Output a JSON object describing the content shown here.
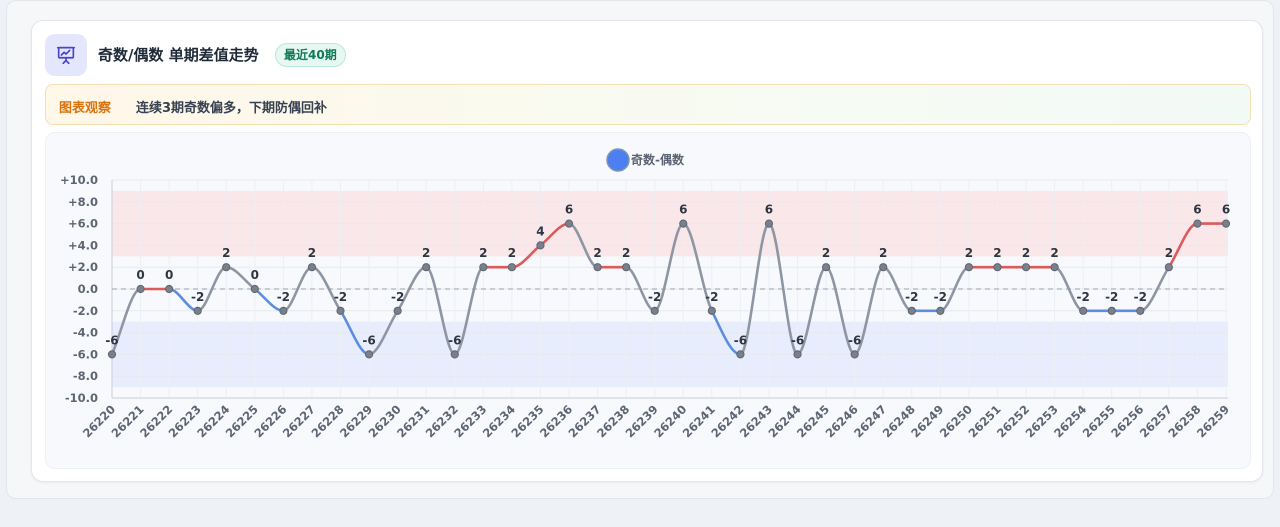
{
  "header": {
    "title": "奇数/偶数 单期差值走势",
    "badge": "最近40期",
    "icon": "presentation-chart-icon"
  },
  "insight": {
    "tag": "图表观察",
    "text": "连续3期奇数偏多，下期防偶回补"
  },
  "colors": {
    "positive_line": "#dc5a5a",
    "negative_line": "#5b8ee0",
    "neutral_line": "#8e96a3",
    "legend_dot": "#4d7ff0",
    "upper_band": "#f9e4e6",
    "lower_band": "#e4ebfb",
    "badge_text": "#0f7a55",
    "note_tag": "#d9730d"
  },
  "chart_data": {
    "type": "line",
    "legend": [
      "奇数-偶数"
    ],
    "legend_position": "top-center",
    "x": [
      "26220",
      "26221",
      "26222",
      "26223",
      "26224",
      "26225",
      "26226",
      "26227",
      "26228",
      "26229",
      "26230",
      "26231",
      "26232",
      "26233",
      "26234",
      "26235",
      "26236",
      "26237",
      "26238",
      "26239",
      "26240",
      "26241",
      "26242",
      "26243",
      "26244",
      "26245",
      "26246",
      "26247",
      "26248",
      "26249",
      "26250",
      "26251",
      "26252",
      "26253",
      "26254",
      "26255",
      "26256",
      "26257",
      "26258",
      "26259"
    ],
    "series": [
      {
        "name": "奇数-偶数",
        "values": [
          -6,
          0,
          0,
          -2,
          2,
          0,
          -2,
          2,
          -2,
          -6,
          -2,
          2,
          -6,
          2,
          2,
          4,
          6,
          2,
          2,
          -2,
          6,
          -2,
          -6,
          6,
          -6,
          2,
          -6,
          2,
          -2,
          -2,
          2,
          2,
          2,
          2,
          -2,
          -2,
          -2,
          2,
          6,
          6
        ]
      }
    ],
    "ylim": [
      -10,
      10
    ],
    "y_ticks": [
      "+10.0",
      "+8.0",
      "+6.0",
      "+4.0",
      "+2.0",
      "0.0",
      "-2.0",
      "-4.0",
      "-6.0",
      "-8.0",
      "-10.0"
    ],
    "upper_band": [
      3,
      9
    ],
    "lower_band": [
      -9,
      -3
    ],
    "zero_line": "dashed",
    "grid": true,
    "xlabel": "",
    "ylabel": ""
  }
}
